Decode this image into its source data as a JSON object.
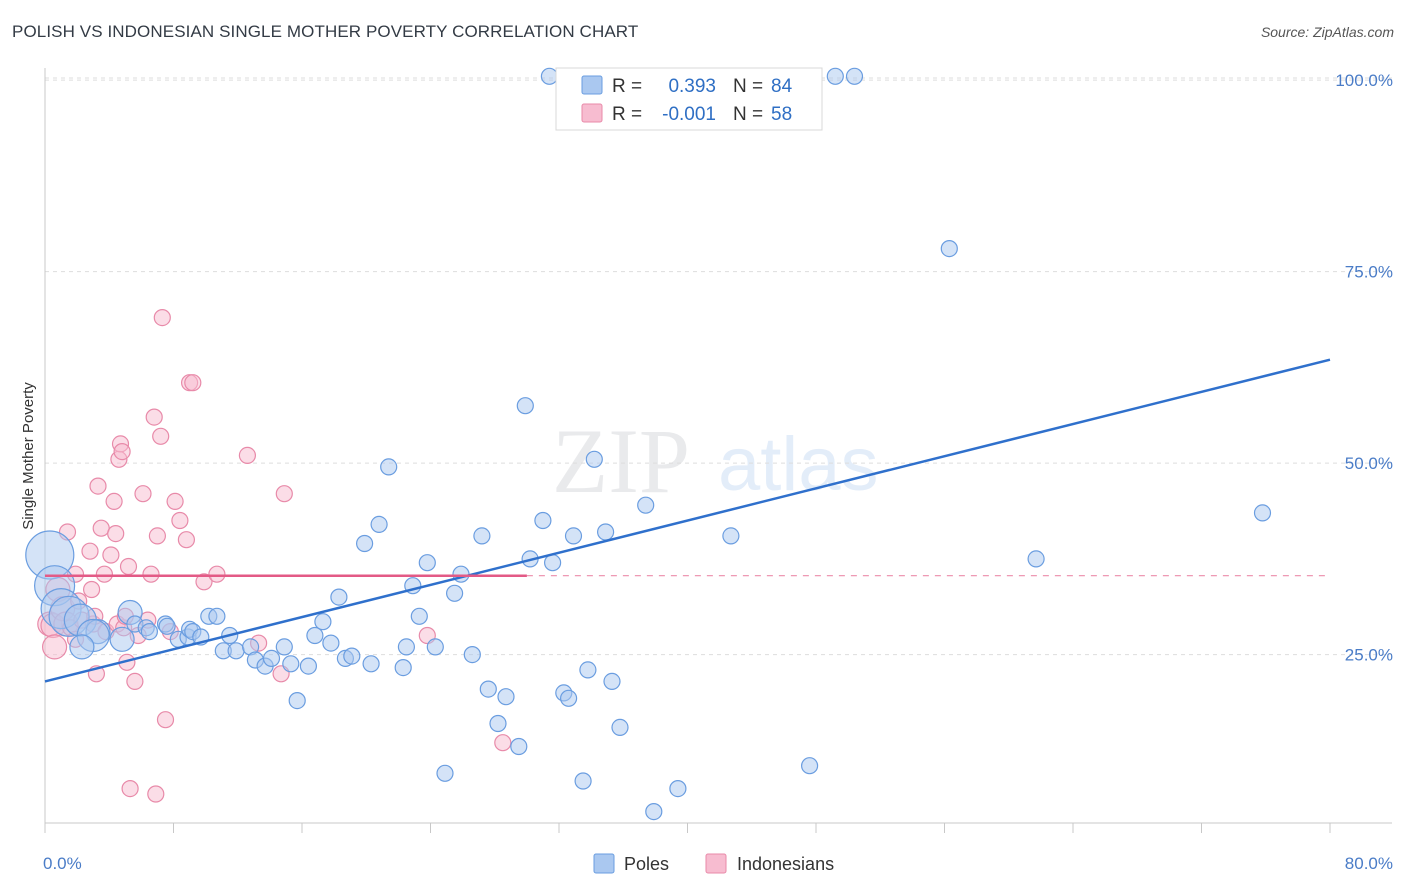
{
  "header": {
    "title": "POLISH VS INDONESIAN SINGLE MOTHER POVERTY CORRELATION CHART",
    "source": "Source: ZipAtlas.com"
  },
  "watermark": {
    "zip": "ZIP",
    "atlas": "atlas"
  },
  "chart_data": {
    "type": "scatter",
    "title": "POLISH VS INDONESIAN SINGLE MOTHER POVERTY CORRELATION CHART",
    "ylabel": "Single Mother Poverty",
    "xlabel": "",
    "xlim": [
      0,
      80
    ],
    "ylim": [
      0,
      105
    ],
    "x_tick_labels": [
      "0.0%",
      "80.0%"
    ],
    "y_ticks": [
      25,
      50,
      75,
      100
    ],
    "y_tick_labels": [
      "25.0%",
      "50.0%",
      "75.0%",
      "100.0%"
    ],
    "grid": true,
    "legend": {
      "placement": "top-center",
      "entries": [
        {
          "r_label": "R =",
          "r_value": "0.393",
          "n_label": "N =",
          "n_value": "84"
        },
        {
          "r_label": "R =",
          "r_value": "-0.001",
          "n_label": "N =",
          "n_value": "58"
        }
      ]
    },
    "bottom_legend": [
      "Poles",
      "Indonesians"
    ],
    "colors": {
      "poles_fill": "#aac8f0",
      "poles_stroke": "#6a9de0",
      "poles_line": "#2f70cc",
      "indonesians_fill": "#f7bcd0",
      "indonesians_stroke": "#e88aa9",
      "indonesians_line": "#e35a86",
      "tick_text": "#4a7cc7"
    },
    "series": [
      {
        "name": "Poles",
        "trend": {
          "x": [
            0,
            80
          ],
          "y": [
            21.5,
            63.5
          ],
          "style": "solid"
        },
        "points": [
          [
            0.3,
            38,
            3
          ],
          [
            0.6,
            34,
            2.5
          ],
          [
            1,
            31,
            2.5
          ],
          [
            1.5,
            30,
            2.5
          ],
          [
            2.2,
            29.5,
            2
          ],
          [
            3.3,
            28,
            1.5
          ],
          [
            3,
            27.5,
            2
          ],
          [
            2.3,
            26,
            1.5
          ],
          [
            4.8,
            27,
            1.5
          ],
          [
            5.3,
            30.5,
            1.5
          ],
          [
            5.6,
            29,
            1
          ],
          [
            6.3,
            28.5,
            1
          ],
          [
            6.5,
            28,
            1
          ],
          [
            7.5,
            29,
            1
          ],
          [
            7.6,
            28.7,
            1
          ],
          [
            8.3,
            27,
            1
          ],
          [
            8.9,
            27.3,
            1
          ],
          [
            9,
            28.3,
            1
          ],
          [
            9.2,
            28,
            1
          ],
          [
            9.7,
            27.3,
            1
          ],
          [
            10.2,
            30,
            1
          ],
          [
            10.7,
            30,
            1
          ],
          [
            11.1,
            25.5,
            1
          ],
          [
            11.5,
            27.5,
            1
          ],
          [
            11.9,
            25.5,
            1
          ],
          [
            12.8,
            26,
            1
          ],
          [
            13.1,
            24.3,
            1
          ],
          [
            13.7,
            23.5,
            1
          ],
          [
            14.1,
            24.5,
            1
          ],
          [
            14.9,
            26,
            1
          ],
          [
            15.3,
            23.8,
            1
          ],
          [
            15.7,
            19,
            1
          ],
          [
            16.4,
            23.5,
            1
          ],
          [
            16.8,
            27.5,
            1
          ],
          [
            17.3,
            29.3,
            1
          ],
          [
            17.8,
            26.5,
            1
          ],
          [
            18.3,
            32.5,
            1
          ],
          [
            18.7,
            24.5,
            1
          ],
          [
            19.1,
            24.8,
            1
          ],
          [
            19.9,
            39.5,
            1
          ],
          [
            20.3,
            23.8,
            1
          ],
          [
            20.8,
            42,
            1
          ],
          [
            21.4,
            49.5,
            1
          ],
          [
            22.3,
            23.3,
            1
          ],
          [
            22.5,
            26,
            1
          ],
          [
            22.9,
            34,
            1
          ],
          [
            23.3,
            30,
            1
          ],
          [
            23.8,
            37,
            1
          ],
          [
            24.3,
            26,
            1
          ],
          [
            24.9,
            9.5,
            1
          ],
          [
            25.5,
            33,
            1
          ],
          [
            25.9,
            35.5,
            1
          ],
          [
            26.6,
            25,
            1
          ],
          [
            27.2,
            40.5,
            1
          ],
          [
            27.6,
            20.5,
            1
          ],
          [
            28.2,
            16,
            1
          ],
          [
            28.7,
            19.5,
            1
          ],
          [
            29.5,
            13,
            1
          ],
          [
            29.9,
            57.5,
            1
          ],
          [
            30.2,
            37.5,
            1
          ],
          [
            31,
            42.5,
            1
          ],
          [
            31.6,
            37,
            1
          ],
          [
            31.4,
            100.5,
            1
          ],
          [
            32.3,
            20,
            1
          ],
          [
            32.6,
            19.3,
            1
          ],
          [
            32.9,
            40.5,
            1
          ],
          [
            33.5,
            8.5,
            1
          ],
          [
            33.8,
            23,
            1
          ],
          [
            34.2,
            50.5,
            1
          ],
          [
            34.9,
            41,
            1
          ],
          [
            35.3,
            21.5,
            1
          ],
          [
            35.8,
            15.5,
            1
          ],
          [
            36.3,
            100.5,
            1
          ],
          [
            37.4,
            44.5,
            1
          ],
          [
            37.9,
            4.5,
            1
          ],
          [
            39.4,
            7.5,
            1
          ],
          [
            42.7,
            40.5,
            1
          ],
          [
            43.4,
            100.5,
            1
          ],
          [
            47.6,
            10.5,
            1
          ],
          [
            49.2,
            100.5,
            1
          ],
          [
            50.4,
            100.5,
            1
          ],
          [
            56.3,
            78,
            1
          ],
          [
            61.7,
            37.5,
            1
          ],
          [
            75.8,
            43.5,
            1
          ]
        ]
      },
      {
        "name": "Indonesians",
        "trend": {
          "x": [
            0,
            30
          ],
          "y": [
            35.3,
            35.3
          ],
          "style": "solid",
          "extension": {
            "x": [
              30,
              80
            ],
            "y": [
              35.3,
              35.3
            ],
            "style": "dashed"
          }
        },
        "points": [
          [
            0.3,
            29,
            1.5
          ],
          [
            0.5,
            28.8,
            1.5
          ],
          [
            0.6,
            26,
            1.5
          ],
          [
            0.8,
            33.5,
            1.5
          ],
          [
            1.1,
            31,
            1.5
          ],
          [
            1.3,
            29,
            1.5
          ],
          [
            1.4,
            41,
            1
          ],
          [
            1.6,
            28.5,
            1
          ],
          [
            1.9,
            27,
            1
          ],
          [
            1.9,
            35.5,
            1
          ],
          [
            2.1,
            32,
            1
          ],
          [
            2.3,
            29.5,
            1
          ],
          [
            2.8,
            38.5,
            1
          ],
          [
            2.9,
            33.5,
            1
          ],
          [
            3,
            29,
            1
          ],
          [
            3.1,
            30,
            1
          ],
          [
            3.2,
            22.5,
            1
          ],
          [
            3.3,
            47,
            1
          ],
          [
            3.5,
            41.5,
            1
          ],
          [
            3.7,
            35.5,
            1
          ],
          [
            3.8,
            28,
            1
          ],
          [
            4.1,
            38,
            1
          ],
          [
            4.3,
            45,
            1
          ],
          [
            4.4,
            40.8,
            1
          ],
          [
            4.5,
            29,
            1
          ],
          [
            4.6,
            50.5,
            1
          ],
          [
            4.7,
            52.5,
            1
          ],
          [
            4.8,
            51.5,
            1
          ],
          [
            4.9,
            28.5,
            1
          ],
          [
            5,
            30,
            1
          ],
          [
            5.1,
            24,
            1
          ],
          [
            5.2,
            36.5,
            1
          ],
          [
            5.3,
            7.5,
            1
          ],
          [
            5.6,
            21.5,
            1
          ],
          [
            5.8,
            27.5,
            1
          ],
          [
            6.1,
            46,
            1
          ],
          [
            6.4,
            29.5,
            1
          ],
          [
            6.6,
            35.5,
            1
          ],
          [
            6.8,
            56,
            1
          ],
          [
            6.9,
            6.8,
            1
          ],
          [
            7,
            40.5,
            1
          ],
          [
            7.2,
            53.5,
            1
          ],
          [
            7.3,
            69,
            1
          ],
          [
            7.5,
            16.5,
            1
          ],
          [
            7.8,
            28,
            1
          ],
          [
            8.1,
            45,
            1
          ],
          [
            8.4,
            42.5,
            1
          ],
          [
            8.8,
            40,
            1
          ],
          [
            9,
            60.5,
            1
          ],
          [
            9.2,
            60.5,
            1
          ],
          [
            9.9,
            34.5,
            1
          ],
          [
            10.7,
            35.5,
            1
          ],
          [
            12.6,
            51,
            1
          ],
          [
            13.3,
            26.5,
            1
          ],
          [
            14.7,
            22.5,
            1
          ],
          [
            14.9,
            46,
            1
          ],
          [
            23.8,
            27.5,
            1
          ],
          [
            28.5,
            13.5,
            1
          ]
        ]
      }
    ]
  }
}
